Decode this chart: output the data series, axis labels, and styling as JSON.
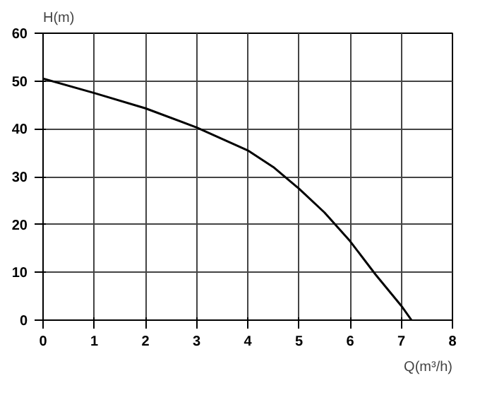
{
  "chart_data": {
    "type": "line",
    "xlabel": "Q(m³/h)",
    "ylabel": "H(m)",
    "x": [
      0,
      1,
      2,
      3,
      4,
      4.5,
      5,
      5.5,
      6,
      6.5,
      7,
      7.2
    ],
    "series": [
      {
        "color": "#000000",
        "values": [
          50.5,
          47.5,
          44.3,
          40.3,
          35.5,
          32,
          27.5,
          22.5,
          16.5,
          9.5,
          3,
          0
        ]
      }
    ],
    "xlim": [
      0,
      8
    ],
    "ylim": [
      0,
      60
    ],
    "xticks": [
      0,
      1,
      2,
      3,
      4,
      5,
      6,
      7,
      8
    ],
    "yticks": [
      0,
      10,
      20,
      30,
      40,
      50,
      60
    ],
    "grid": true,
    "marker": "none",
    "line_style": "solid"
  }
}
